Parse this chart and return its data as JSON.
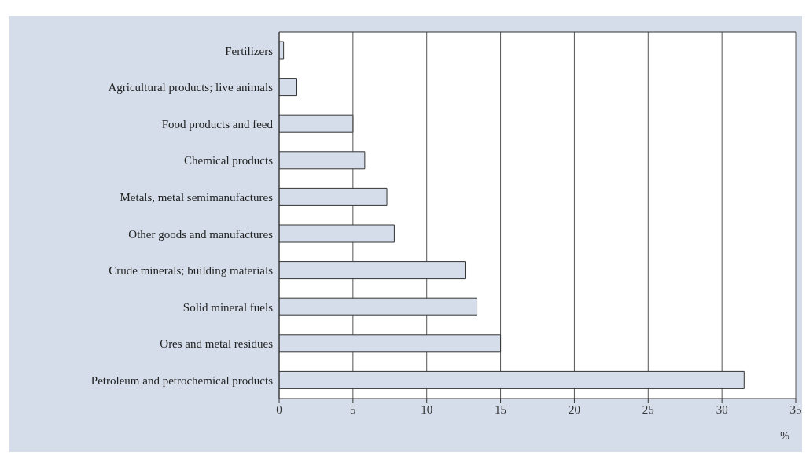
{
  "chart_data": {
    "type": "bar",
    "orientation": "horizontal",
    "xlabel": "%",
    "categories": [
      "Fertilizers",
      "Agricultural products; live animals",
      "Food products and feed",
      "Chemical products",
      "Metals, metal semimanufactures",
      "Other goods and manufactures",
      "Crude minerals; building materials",
      "Solid mineral fuels",
      "Ores and metal residues",
      "Petroleum and petrochemical products"
    ],
    "values": [
      0.3,
      1.2,
      5.0,
      5.8,
      7.3,
      7.8,
      12.6,
      13.4,
      15.0,
      31.5
    ],
    "color": "#d4dde9",
    "xlim": [
      0,
      35
    ],
    "xticks": [
      0,
      5,
      10,
      15,
      20,
      25,
      30,
      35
    ],
    "grid": "x"
  }
}
